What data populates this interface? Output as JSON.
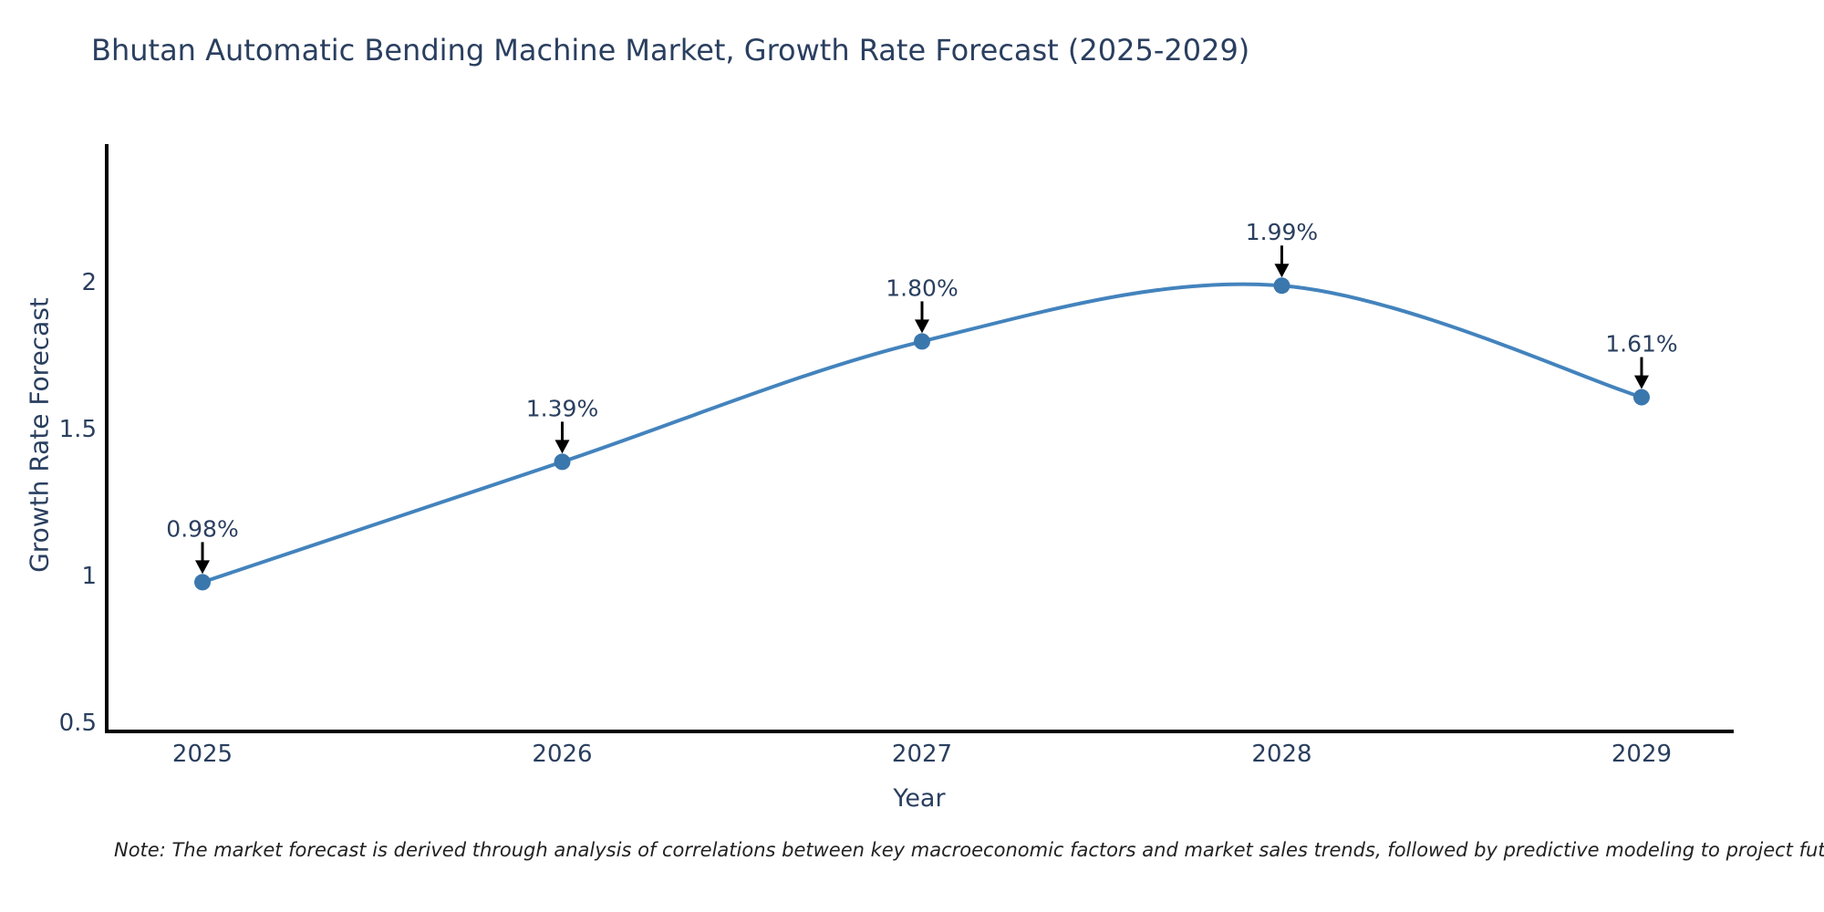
{
  "title": "Bhutan Automatic Bending Machine Market, Growth Rate Forecast (2025-2029)",
  "note": "Note: The market forecast is derived through analysis of correlations between key macroeconomic factors and market sales trends, followed by predictive modeling to project future sales",
  "chart_data": {
    "type": "line",
    "line_shape": "spline",
    "title": "Bhutan Automatic Bending Machine Market, Growth Rate Forecast (2025-2029)",
    "x": [
      2025,
      2026,
      2027,
      2028,
      2029
    ],
    "series": [
      {
        "name": "Growth Rate Forecast",
        "values": [
          0.98,
          1.39,
          1.8,
          1.99,
          1.61
        ]
      }
    ],
    "point_labels": [
      "0.98%",
      "1.39%",
      "1.80%",
      "1.99%",
      "1.61%"
    ],
    "xlabel": "Year",
    "ylabel": "Growth Rate Forecast",
    "yticks": [
      "0.5",
      "1",
      "1.5",
      "2"
    ],
    "ytick_values": [
      0.5,
      1,
      1.5,
      2
    ],
    "ylim": [
      0.478,
      2.466
    ],
    "grid": false,
    "legend": "none",
    "annotations_have_arrows": true,
    "colors": {
      "line": "#4383bd",
      "marker": "#3a77ad",
      "axis": "#000000",
      "text": "#2a3f5f",
      "annotation_arrow": "#000000"
    }
  }
}
